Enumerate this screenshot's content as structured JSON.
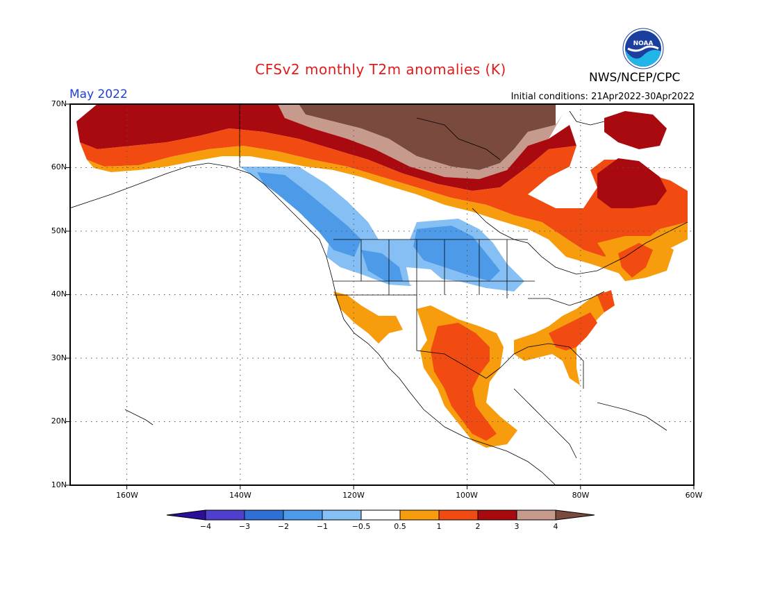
{
  "title": "CFSv2 monthly T2m anomalies (K)",
  "month": "May 2022",
  "initial_conditions": "Initial conditions: 21Apr2022-30Apr2022",
  "agency": "NWS/NCEP/CPC",
  "logo_text": "NOAA",
  "lat_labels": [
    "70N",
    "60N",
    "50N",
    "40N",
    "30N",
    "20N",
    "10N"
  ],
  "lon_labels": [
    "160W",
    "140W",
    "120W",
    "100W",
    "80W",
    "60W"
  ],
  "colorbar": {
    "ticks": [
      "−4",
      "−3",
      "−2",
      "−1",
      "−0.5",
      "0.5",
      "1",
      "2",
      "3",
      "4"
    ],
    "colors": [
      "#2b0f9a",
      "#4e3fcc",
      "#2f6fd6",
      "#4d9ae8",
      "#86bff3",
      "#ffffff",
      "#f79c0c",
      "#f24b12",
      "#a80a10",
      "#c69b8d",
      "#7a4a3e"
    ]
  }
}
